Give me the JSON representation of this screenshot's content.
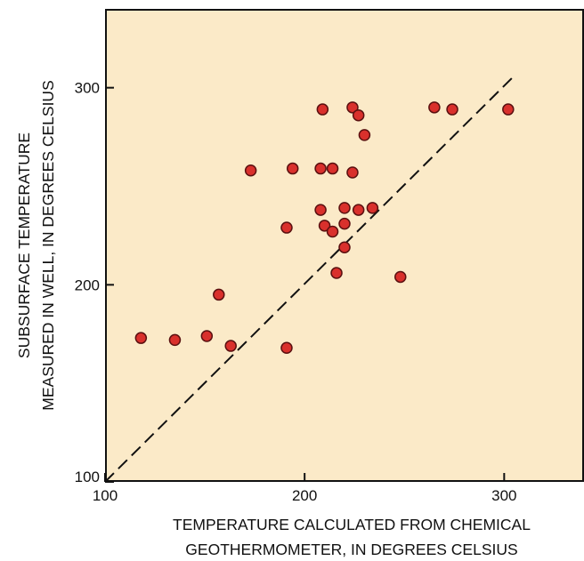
{
  "chart_data": {
    "type": "scatter",
    "title": "",
    "xlabel": [
      "TEMPERATURE CALCULATED FROM CHEMICAL",
      "GEOTHERMOMETER, IN DEGREES CELSIUS"
    ],
    "ylabel": [
      "SUBSURFACE TEMPERATURE",
      "MEASURED IN WELL, IN DEGREES CELSIUS"
    ],
    "xlim": [
      100,
      340
    ],
    "ylim": [
      100,
      340
    ],
    "xticks": [
      100,
      200,
      300
    ],
    "yticks": [
      100,
      200,
      300
    ],
    "xtick_labels": [
      "100",
      "200",
      "300"
    ],
    "ytick_labels": [
      "100",
      "200",
      "300"
    ],
    "grid": false,
    "reference_line": {
      "style": "dashed",
      "from": [
        100,
        100
      ],
      "to": [
        305,
        306
      ]
    },
    "colors": {
      "plot_background": "#fbeac8",
      "point_fill": "#d9302c",
      "point_stroke": "#5a1010",
      "axis": "#111111"
    },
    "points": [
      {
        "x": 118,
        "y": 173
      },
      {
        "x": 135,
        "y": 172
      },
      {
        "x": 151,
        "y": 174
      },
      {
        "x": 157,
        "y": 195
      },
      {
        "x": 163,
        "y": 169
      },
      {
        "x": 173,
        "y": 258
      },
      {
        "x": 191,
        "y": 168
      },
      {
        "x": 191,
        "y": 229
      },
      {
        "x": 194,
        "y": 259
      },
      {
        "x": 208,
        "y": 259
      },
      {
        "x": 208,
        "y": 238
      },
      {
        "x": 209,
        "y": 289
      },
      {
        "x": 210,
        "y": 230
      },
      {
        "x": 214,
        "y": 259
      },
      {
        "x": 214,
        "y": 227
      },
      {
        "x": 216,
        "y": 206
      },
      {
        "x": 220,
        "y": 239
      },
      {
        "x": 220,
        "y": 231
      },
      {
        "x": 220,
        "y": 219
      },
      {
        "x": 224,
        "y": 257
      },
      {
        "x": 224,
        "y": 290
      },
      {
        "x": 227,
        "y": 286
      },
      {
        "x": 227,
        "y": 238
      },
      {
        "x": 230,
        "y": 276
      },
      {
        "x": 234,
        "y": 239
      },
      {
        "x": 248,
        "y": 204
      },
      {
        "x": 265,
        "y": 290
      },
      {
        "x": 274,
        "y": 289
      },
      {
        "x": 302,
        "y": 289
      }
    ]
  }
}
